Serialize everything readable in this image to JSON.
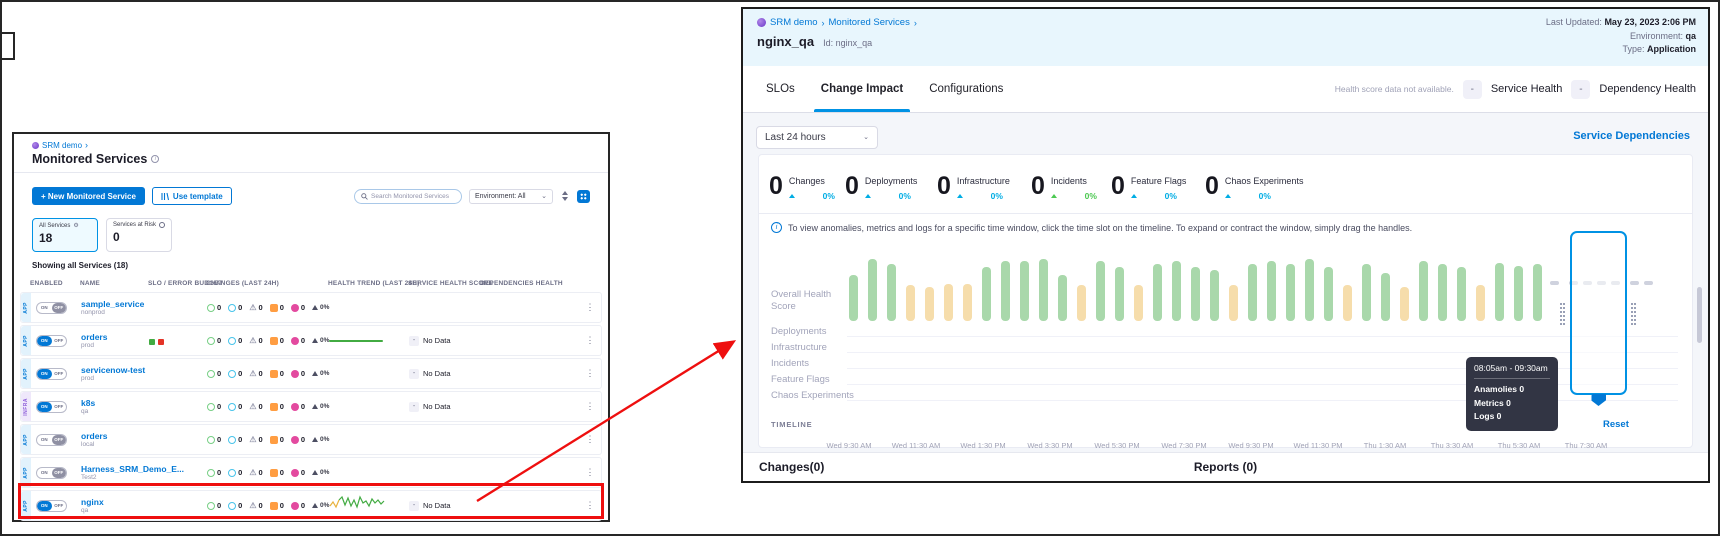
{
  "icons": {
    "chevron_right": "›",
    "chevron_down": "⌄",
    "menu_dots": "⋮",
    "warning": "⚠",
    "gear": "⚙",
    "info": "i"
  },
  "left_panel": {
    "breadcrumb": "SRM demo",
    "title": "Monitored Services",
    "toolbar": {
      "new_service": "+ New Monitored Service",
      "use_template": "Use template",
      "search_placeholder": "Search Monitored Services",
      "environment": "Environment: All"
    },
    "summary_cards": [
      {
        "label": "All Services",
        "value": "18"
      },
      {
        "label": "Services at Risk",
        "value": "0"
      }
    ],
    "showing": "Showing all Services (18)",
    "columns": [
      "ENABLED",
      "NAME",
      "SLO / ERROR BUDGET",
      "CHANGES (LAST 24H)",
      "HEALTH TREND (LAST 24H)",
      "SERVICE HEALTH SCORE",
      "DEPENDENCIES HEALTH"
    ],
    "toggle_labels": [
      "ON",
      "OFF"
    ],
    "change_counts": [
      "0",
      "0",
      "0",
      "0",
      "0"
    ],
    "trend_pct": "0%",
    "no_data": "No Data",
    "dash_badge": "-",
    "slo_colors": [
      "#42ab42",
      "#e43326"
    ],
    "rows": [
      {
        "tag": "APP",
        "tag_type": "app",
        "toggle": "off",
        "name": "sample_service",
        "env": "nonprod",
        "slo": false,
        "trend": "none",
        "health": "",
        "dep_dot": false
      },
      {
        "tag": "APP",
        "tag_type": "app",
        "toggle": "on",
        "name": "orders",
        "env": "prod",
        "slo": true,
        "trend": "flat",
        "health": "No Data",
        "dep_dot": true
      },
      {
        "tag": "APP",
        "tag_type": "app",
        "toggle": "on",
        "name": "servicenow-test",
        "env": "prod",
        "slo": false,
        "trend": "none",
        "health": "No Data",
        "dep_dot": false
      },
      {
        "tag": "INFRA",
        "tag_type": "infra",
        "toggle": "on",
        "name": "k8s",
        "env": "qa",
        "slo": false,
        "trend": "none",
        "health": "No Data",
        "dep_dot": false
      },
      {
        "tag": "APP",
        "tag_type": "app",
        "toggle": "off",
        "name": "orders",
        "env": "local",
        "slo": false,
        "trend": "none",
        "health": "",
        "dep_dot": false
      },
      {
        "tag": "APP",
        "tag_type": "app",
        "toggle": "off",
        "name": "Harness_SRM_Demo_E...",
        "env": "Test2",
        "slo": false,
        "trend": "none",
        "health": "",
        "dep_dot": false
      },
      {
        "tag": "APP",
        "tag_type": "app",
        "toggle": "on",
        "name": "nginx",
        "env": "qa",
        "slo": false,
        "trend": "spark",
        "health": "No Data",
        "dep_dot": false
      }
    ]
  },
  "right_panel": {
    "breadcrumb": [
      "SRM demo",
      "Monitored Services"
    ],
    "title": "nginx_qa",
    "subtitle": "Id: nginx_qa",
    "meta": [
      {
        "label": "Last Updated:",
        "value": "May 23, 2023 2:06 PM"
      },
      {
        "label": "Environment:",
        "value": "qa"
      },
      {
        "label": "Type:",
        "value": "Application"
      }
    ],
    "tabs": [
      {
        "label": "SLOs",
        "active": false
      },
      {
        "label": "Change Impact",
        "active": true
      },
      {
        "label": "Configurations",
        "active": false
      }
    ],
    "health_note": "Health score data not available.",
    "health_badges": [
      {
        "value": "-",
        "label": "Service Health"
      },
      {
        "value": "-",
        "label": "Dependency Health"
      }
    ],
    "time_range": "Last 24 hours",
    "dependencies_link": "Service Dependencies",
    "stats": [
      {
        "value": "0",
        "label": "Changes",
        "pct": "0%",
        "color": "#00ade4"
      },
      {
        "value": "0",
        "label": "Deployments",
        "pct": "0%",
        "color": "#00ade4"
      },
      {
        "value": "0",
        "label": "Infrastructure",
        "pct": "0%",
        "color": "#00ade4"
      },
      {
        "value": "0",
        "label": "Incidents",
        "pct": "0%",
        "color": "#4dc952"
      },
      {
        "value": "0",
        "label": "Feature Flags",
        "pct": "0%",
        "color": "#00ade4"
      },
      {
        "value": "0",
        "label": "Chaos Experiments",
        "pct": "0%",
        "color": "#00ade4"
      }
    ],
    "info": "To view anomalies, metrics and logs for a specific time window, click the time slot on the timeline. To expand or contract the window, simply drag the handles.",
    "lanes": [
      "Overall Health Score",
      "Deployments",
      "Infrastructure",
      "Incidents",
      "Feature Flags",
      "Chaos Experiments"
    ],
    "timeline_label": "TIMELINE",
    "ticks": [
      "Wed 9:30 AM",
      "Wed 11:30 AM",
      "Wed 1:30 PM",
      "Wed 3:30 PM",
      "Wed 5:30 PM",
      "Wed 7:30 PM",
      "Wed 9:30 PM",
      "Wed 11:30 PM",
      "Thu 1:30 AM",
      "Thu 3:30 AM",
      "Thu 5:30 AM",
      "Thu 7:30 AM"
    ],
    "reset": "Reset",
    "tooltip": {
      "range": "08:05am - 09:30am",
      "lines": [
        "Anamolies 0",
        "Metrics 0",
        "Logs 0"
      ]
    },
    "bottom_tabs": [
      "Changes(0)",
      "Reports (0)"
    ],
    "timeline_bars": {
      "bar_colors": {
        "g": "#a9d8ab",
        "y": "#f6ddab"
      },
      "heights": [
        46,
        62,
        57,
        36,
        34,
        37,
        37,
        54,
        60,
        60,
        62,
        46,
        36,
        60,
        54,
        36,
        57,
        60,
        54,
        51,
        36,
        57,
        60,
        57,
        62,
        54,
        36,
        57,
        48,
        34,
        60,
        57,
        54,
        36,
        58,
        55,
        57
      ],
      "colors": [
        "g",
        "g",
        "g",
        "y",
        "y",
        "y",
        "y",
        "g",
        "g",
        "g",
        "g",
        "g",
        "y",
        "g",
        "g",
        "y",
        "g",
        "g",
        "g",
        "g",
        "y",
        "g",
        "g",
        "g",
        "g",
        "g",
        "y",
        "g",
        "g",
        "y",
        "g",
        "g",
        "g",
        "y",
        "g",
        "g",
        "g"
      ]
    }
  }
}
